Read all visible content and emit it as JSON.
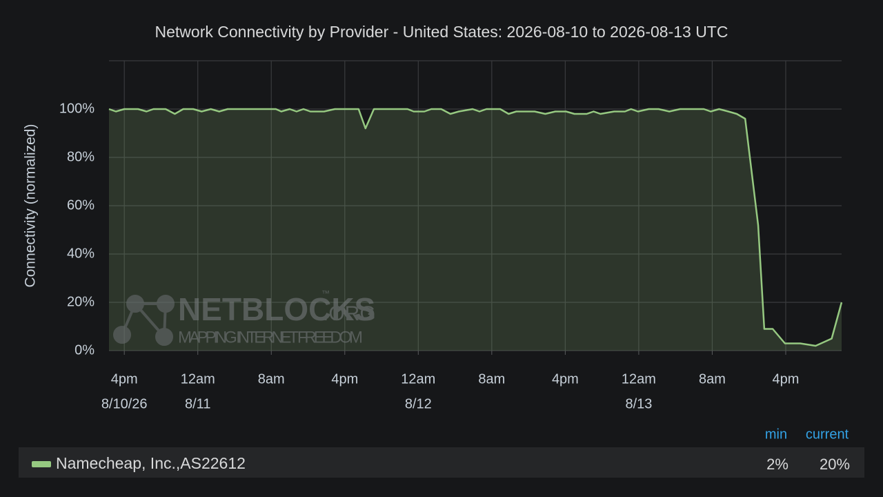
{
  "chart_data": {
    "type": "area",
    "title": "Network Connectivity by Provider - United States: 2026-08-10 to 2026-08-13 UTC",
    "y_label": "Connectivity (normalized)",
    "xlim": [
      "2026-08-10T14:20Z",
      "2026-08-13T22:05Z"
    ],
    "xticks": [
      {
        "value": "2026-08-10T16:00Z",
        "label": "4pm",
        "sublabel": "8/10/26"
      },
      {
        "value": "2026-08-11T00:00Z",
        "label": "12am",
        "sublabel": "8/11"
      },
      {
        "value": "2026-08-11T08:00Z",
        "label": "8am"
      },
      {
        "value": "2026-08-11T16:00Z",
        "label": "4pm"
      },
      {
        "value": "2026-08-12T00:00Z",
        "label": "12am",
        "sublabel": "8/12"
      },
      {
        "value": "2026-08-12T08:00Z",
        "label": "8am"
      },
      {
        "value": "2026-08-12T16:00Z",
        "label": "4pm"
      },
      {
        "value": "2026-08-13T00:00Z",
        "label": "12am",
        "sublabel": "8/13"
      },
      {
        "value": "2026-08-13T08:00Z",
        "label": "8am"
      },
      {
        "value": "2026-08-13T16:00Z",
        "label": "4pm"
      }
    ],
    "ylim": [
      0,
      120
    ],
    "yticks": [
      {
        "value": 0,
        "label": "0%"
      },
      {
        "value": 20,
        "label": "20%"
      },
      {
        "value": 40,
        "label": "40%"
      },
      {
        "value": 60,
        "label": "60%"
      },
      {
        "value": 80,
        "label": "80%"
      },
      {
        "value": 100,
        "label": "100%"
      }
    ],
    "grid": true,
    "x": [
      "2026-08-10T14:20Z",
      "2026-08-10T15:05Z",
      "2026-08-10T16:00Z",
      "2026-08-10T17:30Z",
      "2026-08-10T18:25Z",
      "2026-08-10T19:10Z",
      "2026-08-10T20:30Z",
      "2026-08-10T21:30Z",
      "2026-08-10T22:25Z",
      "2026-08-10T23:30Z",
      "2026-08-11T00:25Z",
      "2026-08-11T01:25Z",
      "2026-08-11T02:20Z",
      "2026-08-11T03:15Z",
      "2026-08-11T08:30Z",
      "2026-08-11T09:05Z",
      "2026-08-11T10:00Z",
      "2026-08-11T10:45Z",
      "2026-08-11T11:30Z",
      "2026-08-11T12:15Z",
      "2026-08-11T13:45Z",
      "2026-08-11T14:55Z",
      "2026-08-11T17:30Z",
      "2026-08-11T18:15Z",
      "2026-08-11T19:10Z",
      "2026-08-11T22:50Z",
      "2026-08-11T23:30Z",
      "2026-08-12T00:40Z",
      "2026-08-12T01:25Z",
      "2026-08-12T02:30Z",
      "2026-08-12T03:30Z",
      "2026-08-12T04:25Z",
      "2026-08-12T05:55Z",
      "2026-08-12T06:40Z",
      "2026-08-12T07:25Z",
      "2026-08-12T08:55Z",
      "2026-08-12T09:50Z",
      "2026-08-12T10:40Z",
      "2026-08-12T12:40Z",
      "2026-08-12T13:50Z",
      "2026-08-12T14:55Z",
      "2026-08-12T16:05Z",
      "2026-08-12T17:00Z",
      "2026-08-12T18:20Z",
      "2026-08-12T19:05Z",
      "2026-08-12T19:50Z",
      "2026-08-12T21:20Z",
      "2026-08-12T22:30Z",
      "2026-08-12T23:10Z",
      "2026-08-12T23:55Z",
      "2026-08-13T01:05Z",
      "2026-08-13T02:10Z",
      "2026-08-13T03:20Z",
      "2026-08-13T04:30Z",
      "2026-08-13T07:05Z",
      "2026-08-13T07:50Z",
      "2026-08-13T08:45Z",
      "2026-08-13T09:45Z",
      "2026-08-13T10:40Z",
      "2026-08-13T11:35Z",
      "2026-08-13T13:00Z",
      "2026-08-13T13:40Z",
      "2026-08-13T14:35Z",
      "2026-08-13T15:55Z",
      "2026-08-13T17:35Z",
      "2026-08-13T19:15Z",
      "2026-08-13T21:00Z",
      "2026-08-13T22:05Z"
    ],
    "series": [
      {
        "name": "Namecheap, Inc.,AS22612",
        "color": "#96c981",
        "values": [
          100,
          99,
          100,
          100,
          99,
          100,
          100,
          98,
          100,
          100,
          99,
          100,
          99,
          100,
          100,
          99,
          100,
          99,
          100,
          99,
          99,
          100,
          100,
          92,
          100,
          100,
          99,
          99,
          100,
          100,
          98,
          99,
          100,
          99,
          100,
          100,
          98,
          99,
          99,
          98,
          99,
          99,
          98,
          98,
          99,
          98,
          99,
          99,
          100,
          99,
          100,
          100,
          99,
          100,
          100,
          99,
          100,
          99,
          98,
          96,
          52,
          9,
          9,
          3,
          3,
          2,
          5,
          20
        ]
      }
    ],
    "legend": {
      "columns": [
        "min",
        "current"
      ],
      "values": [
        2,
        20
      ],
      "value_labels": [
        "2%",
        "20%"
      ]
    },
    "watermark": {
      "brand": "NETBLOCKS",
      "suffix": ".ORG",
      "mark": "™",
      "tagline": "MAPPING INTERNET FREEDOM"
    }
  }
}
